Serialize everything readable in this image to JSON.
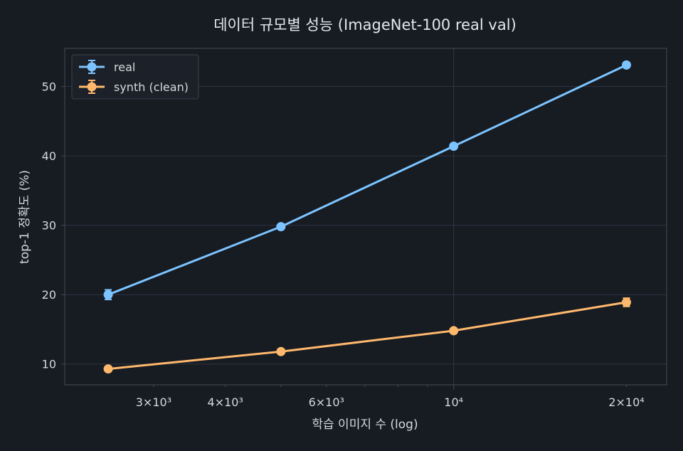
{
  "chart_data": {
    "type": "line",
    "title": "데이터 규모별 성능 (ImageNet-100 real val)",
    "xlabel": "학습 이미지 수 (log)",
    "ylabel": "top-1 정확도 (%)",
    "x_scale": "log",
    "x": [
      2500,
      5000,
      10000,
      20000
    ],
    "xlim": [
      2100,
      23500
    ],
    "ylim": [
      7.0,
      55.5
    ],
    "x_ticks": [
      {
        "value": 3000,
        "label": "3×10³"
      },
      {
        "value": 4000,
        "label": "4×10³"
      },
      {
        "value": 6000,
        "label": "6×10³"
      },
      {
        "value": 10000,
        "label": "10⁴"
      },
      {
        "value": 20000,
        "label": "2×10⁴"
      }
    ],
    "y_ticks": [
      10,
      20,
      30,
      40,
      50
    ],
    "grid": true,
    "legend_position": "top-left",
    "series": [
      {
        "name": "real",
        "color": "#7cc4ff",
        "values": [
          20.0,
          29.8,
          41.4,
          53.1
        ],
        "errors": [
          0.7,
          0.3,
          0.3,
          0.3
        ]
      },
      {
        "name": "synth (clean)",
        "color": "#ffb86c",
        "values": [
          9.3,
          11.8,
          14.8,
          18.9
        ],
        "errors": [
          0.3,
          0.3,
          0.3,
          0.6
        ]
      }
    ]
  },
  "colors": {
    "background": "#171b22",
    "grid": "#2f3540",
    "axis": "#454c58",
    "text": "#d6d9de"
  }
}
